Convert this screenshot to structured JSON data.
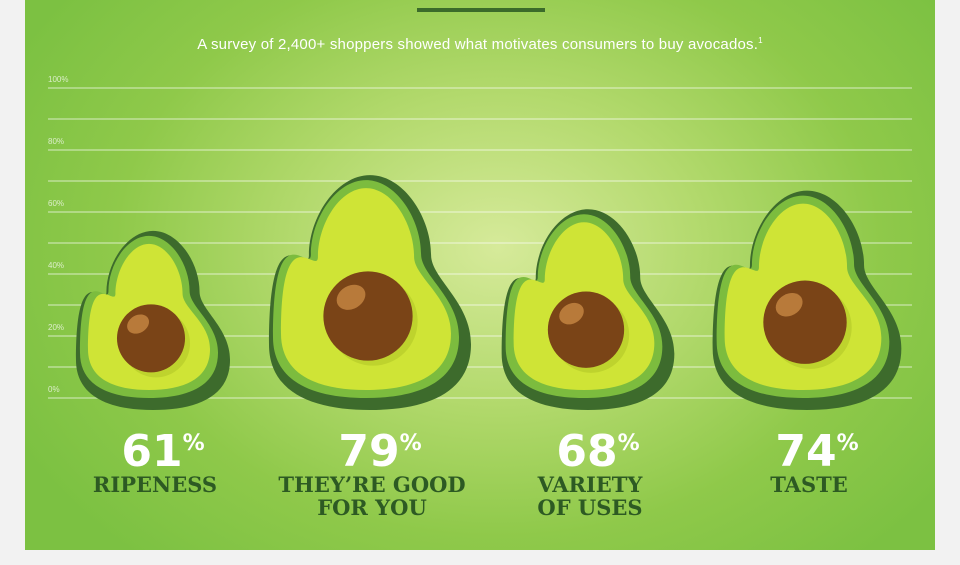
{
  "subtitle": "A survey of 2,400+ shoppers showed what motivates consumers to buy avocados.",
  "subtitle_footnote": "1",
  "colors": {
    "rim": "#3d6b2c",
    "skin": "#7cbc3e",
    "flesh": "#cfe436",
    "pit": "#7a4417",
    "pit_highlight": "#b87a3a",
    "label": "#2d5a23"
  },
  "chart_data": {
    "type": "bar",
    "ylim": [
      0,
      100
    ],
    "yticks": [
      "0%",
      "20%",
      "40%",
      "60%",
      "80%",
      "100%"
    ],
    "grid": true,
    "categories": [
      "RIPENESS",
      "THEY'RE GOOD FOR YOU",
      "VARIETY OF USES",
      "TASTE"
    ],
    "category_lines": [
      [
        "RIPENESS"
      ],
      [
        "THEY’RE GOOD",
        "FOR YOU"
      ],
      [
        "VARIETY",
        "OF USES"
      ],
      [
        "TASTE"
      ]
    ],
    "values": [
      61,
      79,
      68,
      74
    ],
    "value_labels": [
      "61",
      "79",
      "68",
      "74"
    ],
    "unit": "%"
  }
}
